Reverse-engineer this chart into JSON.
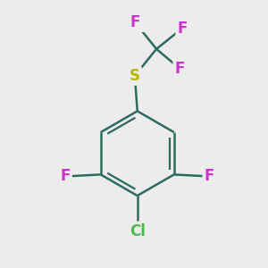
{
  "background_color": "#ececec",
  "bond_color": "#2d6b5e",
  "bond_width": 1.8,
  "S_color": "#b8b800",
  "F_color": "#cc33cc",
  "Cl_color": "#44bb44",
  "figsize": [
    3.0,
    3.0
  ],
  "dpi": 100,
  "xlim": [
    -1.8,
    1.8
  ],
  "ylim": [
    -2.0,
    2.0
  ]
}
